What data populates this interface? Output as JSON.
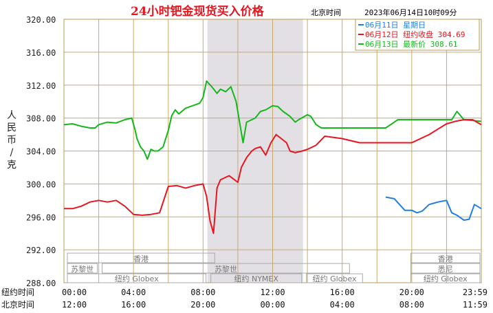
{
  "chart_data": {
    "type": "line",
    "title": "24小时钯金现货买入价格",
    "timezone_label": "北京时间",
    "timestamp": "2023年06月14日10时09分",
    "ylabel": "人民币/克",
    "ylim": [
      288,
      320
    ],
    "yticks": [
      "320.00",
      "316.00",
      "312.00",
      "308.00",
      "304.00",
      "300.00",
      "296.00",
      "292.00",
      "288.00"
    ],
    "xticks_ny": [
      "00:00",
      "04:00",
      "08:00",
      "12:00",
      "16:00",
      "20:00",
      "23:59"
    ],
    "xticks_bj": [
      "12:00",
      "16:00",
      "20:00",
      "00:00",
      "04:00",
      "08:00",
      "11:59"
    ],
    "row_label_ny": "纽约时间",
    "row_label_bj": "北京时间",
    "legend": [
      {
        "label": "06月11日  星期日",
        "color": "#1e7fe0"
      },
      {
        "label": "06月12日  纽约收盘 304.69",
        "color": "#e8141e"
      },
      {
        "label": "06月13日  最新价 308.61",
        "color": "#12b81a"
      }
    ],
    "shaded_hours": [
      8.25,
      13.75
    ],
    "sessions": {
      "row1": [
        {
          "label": "香港",
          "start": 0,
          "end": 8.75
        },
        {
          "label": "香港",
          "start": 19.75,
          "end": 24
        }
      ],
      "row2": [
        {
          "label": "苏黎世",
          "start": 0,
          "end": 2
        },
        {
          "label": "苏黎世",
          "start": 2,
          "end": 16.5
        },
        {
          "label": "悉尼",
          "start": 19.75,
          "end": 24
        }
      ],
      "row3": [
        {
          "label": "纽约 Globex",
          "start": 0,
          "end": 8.25
        },
        {
          "label": "纽约 NYMEX",
          "start": 8.25,
          "end": 13.75
        },
        {
          "label": "纽约 Globex",
          "start": 13.75,
          "end": 17.25
        },
        {
          "label": "纽约 Globex",
          "start": 19.75,
          "end": 24
        }
      ]
    },
    "series": [
      {
        "name": "06月13日",
        "color": "#12b81a",
        "x": [
          0,
          0.5,
          1,
          1.5,
          1.8,
          2,
          2.5,
          3,
          3.5,
          3.9,
          4.1,
          4.2,
          4.4,
          4.6,
          4.8,
          5,
          5.2,
          5.4,
          5.7,
          6,
          6.2,
          6.4,
          6.6,
          7,
          7.4,
          7.8,
          8,
          8.2,
          8.5,
          8.8,
          9,
          9.3,
          9.6,
          9.9,
          10.1,
          10.3,
          10.5,
          10.8,
          11,
          11.3,
          11.6,
          12,
          12.3,
          12.6,
          13,
          13.3,
          13.5,
          14,
          14.2,
          14.5,
          14.8,
          15,
          16,
          17,
          18,
          18.5,
          19,
          19.2,
          20,
          21,
          22,
          22.3,
          22.6,
          23,
          23.5,
          24
        ],
        "values": [
          307.2,
          307.3,
          307,
          306.8,
          306.8,
          307.2,
          307.5,
          307.4,
          307.8,
          308,
          306.5,
          305.5,
          304.5,
          304,
          303,
          304.2,
          304,
          304,
          304.5,
          306.5,
          308.3,
          309,
          308.5,
          309.2,
          309.5,
          309.8,
          310.5,
          312.5,
          311.8,
          311,
          311.5,
          311.2,
          311.8,
          310,
          307.5,
          305,
          307.5,
          307.8,
          308,
          308.8,
          309,
          309.5,
          309.4,
          308.8,
          308.2,
          307.5,
          307.8,
          308.4,
          308.2,
          307.2,
          306.8,
          306.8,
          306.8,
          306.8,
          306.8,
          306.8,
          307.5,
          307.8,
          307.8,
          307.8,
          307.8,
          307.8,
          308.8,
          307.8,
          307.7,
          307.6
        ]
      },
      {
        "name": "06月12日",
        "color": "#e8141e",
        "x": [
          0,
          0.5,
          1,
          1.5,
          2,
          2.5,
          3,
          3.5,
          4,
          4.5,
          5,
          5.5,
          6,
          6.5,
          7,
          7.5,
          8,
          8.2,
          8.4,
          8.6,
          8.8,
          9,
          9.5,
          10,
          10.2,
          10.5,
          10.8,
          11,
          11.3,
          11.6,
          11.9,
          12.2,
          12.5,
          12.8,
          13,
          13.3,
          13.7,
          14,
          14.5,
          15,
          16,
          17,
          18,
          19,
          20,
          21,
          22,
          22.5,
          23,
          23.5,
          24
        ],
        "values": [
          297,
          297,
          297.3,
          297.8,
          298,
          297.8,
          298,
          297.3,
          296.3,
          296.2,
          296.3,
          296.5,
          299.7,
          299.8,
          299.5,
          299.8,
          300,
          298.5,
          295.5,
          294,
          299.5,
          300.5,
          301,
          300.2,
          302,
          303.2,
          304,
          304.3,
          304.5,
          303.5,
          305,
          306,
          305.5,
          305,
          304,
          303.8,
          304,
          304.2,
          304.7,
          305.8,
          305.5,
          305,
          305,
          305,
          305,
          306,
          307.3,
          307.6,
          307.8,
          307.8,
          307.2
        ]
      },
      {
        "name": "06月11日",
        "color": "#1e7fe0",
        "x": [
          18.5,
          19,
          19.3,
          19.6,
          20,
          20.3,
          20.6,
          21,
          21.5,
          22,
          22.3,
          22.6,
          23,
          23.3,
          23.6,
          24
        ],
        "values": [
          298.4,
          298.2,
          297.5,
          296.8,
          296.8,
          296.5,
          296.7,
          297.5,
          297.8,
          298,
          296.5,
          296.2,
          295.6,
          295.7,
          297.5,
          297
        ]
      }
    ]
  }
}
